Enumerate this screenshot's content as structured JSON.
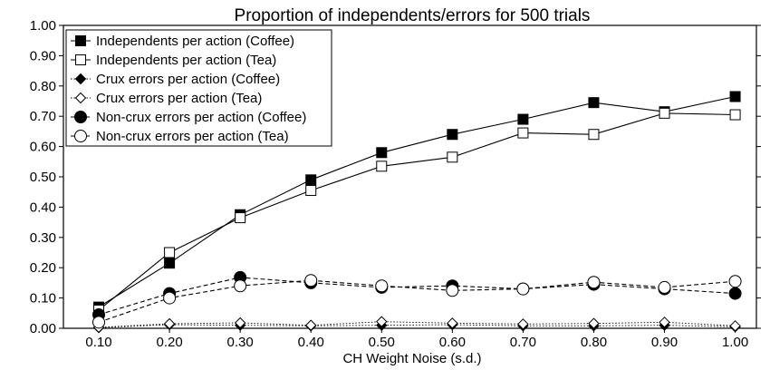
{
  "chart_data": {
    "type": "line",
    "title": "Proportion of independents/errors for 500 trials",
    "xlabel": "CH Weight Noise (s.d.)",
    "ylabel": "",
    "x": [
      0.1,
      0.2,
      0.3,
      0.4,
      0.5,
      0.6,
      0.7,
      0.8,
      0.9,
      1.0
    ],
    "x_tick_labels": [
      "0.10",
      "0.20",
      "0.30",
      "0.40",
      "0.50",
      "0.60",
      "0.70",
      "0.80",
      "0.90",
      "1.00"
    ],
    "xlim": [
      0.05,
      1.03
    ],
    "ylim": [
      0,
      1.0
    ],
    "y_ticks": [
      0,
      0.1,
      0.2,
      0.3,
      0.4,
      0.5,
      0.6,
      0.7,
      0.8,
      0.9,
      1.0
    ],
    "y_tick_labels": [
      "0.00",
      "0.10",
      "0.20",
      "0.30",
      "0.40",
      "0.50",
      "0.60",
      "0.70",
      "0.80",
      "0.90",
      "1.00"
    ],
    "grid": false,
    "legend_position": "top-left",
    "series": [
      {
        "name": "Independents per action (Coffee)",
        "marker": "square-filled",
        "line": "solid",
        "values": [
          0.07,
          0.215,
          0.375,
          0.49,
          0.58,
          0.64,
          0.69,
          0.745,
          0.715,
          0.765
        ]
      },
      {
        "name": "Independents per action (Tea)",
        "marker": "square-open",
        "line": "solid",
        "values": [
          0.06,
          0.25,
          0.365,
          0.455,
          0.535,
          0.565,
          0.645,
          0.64,
          0.71,
          0.705
        ]
      },
      {
        "name": "Crux errors per action (Coffee)",
        "marker": "diamond-filled",
        "line": "dotted",
        "values": [
          0.002,
          0.012,
          0.01,
          0.008,
          0.01,
          0.012,
          0.008,
          0.008,
          0.01,
          0.005
        ]
      },
      {
        "name": "Crux errors per action (Tea)",
        "marker": "diamond-open",
        "line": "dotted",
        "values": [
          0.003,
          0.015,
          0.018,
          0.01,
          0.022,
          0.017,
          0.014,
          0.016,
          0.02,
          0.008
        ]
      },
      {
        "name": "Non-crux errors per action (Coffee)",
        "marker": "circle-filled",
        "line": "dashed",
        "values": [
          0.045,
          0.115,
          0.168,
          0.15,
          0.135,
          0.14,
          0.13,
          0.145,
          0.13,
          0.115
        ]
      },
      {
        "name": "Non-crux errors per action (Tea)",
        "marker": "circle-open",
        "line": "dashed",
        "values": [
          0.02,
          0.1,
          0.14,
          0.158,
          0.14,
          0.125,
          0.13,
          0.152,
          0.135,
          0.155
        ]
      }
    ]
  }
}
